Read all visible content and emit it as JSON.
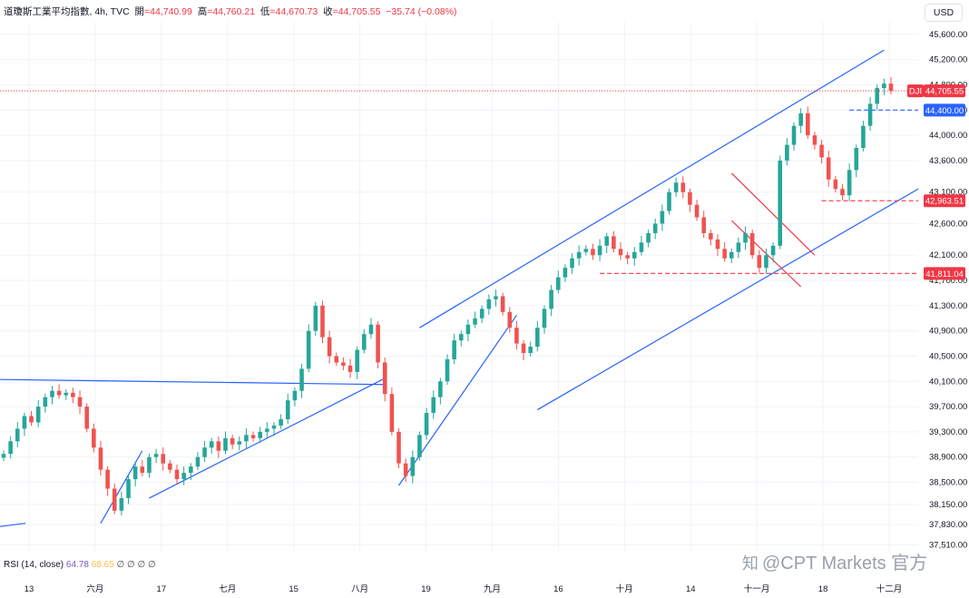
{
  "header": {
    "symbol_title": "道瓊斯工業平均指數, 4h, TVC",
    "open_label": "開",
    "open_value": "=44,740.99",
    "high_label": "高",
    "high_value": "=44,760.21",
    "low_label": "低",
    "low_value": "=44,670.73",
    "close_label": "收",
    "close_value": "=44,705.55",
    "change": "−35.74 (−0.08%)"
  },
  "currency_button": "USD",
  "rsi": {
    "label": "RSI (14, close)",
    "value1": "64.78",
    "value2": "68.65",
    "extra": "∅ ∅ ∅ ∅"
  },
  "watermark": {
    "icon": "知",
    "text": "@CPT Markets 官方"
  },
  "colors": {
    "up": "#26a69a",
    "down": "#ef5350",
    "trendline": "#2962ff",
    "channel_red": "#f23645",
    "price_tag_red": "#f23645",
    "price_tag_blue": "#2962ff",
    "grid": "#f0f3fa"
  },
  "chart_data": {
    "type": "candlestick",
    "y_axis_ticks": [
      "45,600.00",
      "45,200.00",
      "44,800.00",
      "44,400.00",
      "44,000.00",
      "43,600.00",
      "43,100.00",
      "42,600.00",
      "42,100.00",
      "41,700.00",
      "41,300.00",
      "40,900.00",
      "40,500.00",
      "40,100.00",
      "39,700.00",
      "39,300.00",
      "38,900.00",
      "38,500.00",
      "38,150.00",
      "37,830.00",
      "37,510.00"
    ],
    "x_axis_ticks": [
      "13",
      "六月",
      "17",
      "七月",
      "15",
      "八月",
      "19",
      "九月",
      "16",
      "十月",
      "14",
      "十一月",
      "18",
      "十二月"
    ],
    "ylim": [
      37400,
      45800
    ],
    "price_tags": [
      {
        "label": "DJI",
        "value": "44,705.55",
        "kind": "current"
      },
      {
        "label": "",
        "value": "44,400.00",
        "kind": "level-blue"
      },
      {
        "label": "",
        "value": "42,963.51",
        "kind": "level-red"
      },
      {
        "label": "",
        "value": "41,811.04",
        "kind": "level-red"
      }
    ],
    "series": [
      {
        "close": [
          38950,
          39150,
          39350,
          39550,
          39450,
          39700,
          39850,
          39950,
          39880,
          39920,
          39850,
          39700,
          39350,
          39050,
          38700,
          38400,
          38050,
          38250,
          38550,
          38750,
          38650,
          38900,
          38950,
          38800,
          38700,
          38550,
          38650,
          38750,
          38900,
          39050,
          39150,
          39000,
          39200,
          39100,
          39150,
          39250,
          39200,
          39300,
          39350,
          39400,
          39500,
          39800,
          39950,
          40300,
          40900,
          41300,
          40800,
          40500,
          40400,
          40350,
          40250,
          40600,
          40850,
          41000,
          40400,
          39900,
          39300,
          38800,
          38600,
          38900,
          39250,
          39600,
          39850,
          40100,
          40450,
          40750,
          40850,
          41000,
          41100,
          41250,
          41400,
          41450,
          41200,
          40950,
          40700,
          40550,
          40650,
          40950,
          41250,
          41550,
          41750,
          41900,
          42050,
          42150,
          42200,
          42100,
          42250,
          42400,
          42200,
          42100,
          42050,
          42150,
          42300,
          42450,
          42600,
          42800,
          43100,
          43250,
          43100,
          42900,
          42700,
          42450,
          42350,
          42200,
          42050,
          42150,
          42300,
          42450,
          42100,
          41900,
          42100,
          42250,
          43600,
          43850,
          44150,
          44350,
          44000,
          43850,
          43650,
          43300,
          43150,
          43050,
          43450,
          43800,
          44150,
          44500,
          44750,
          44820,
          44705
        ]
      }
    ],
    "trendlines": [
      {
        "name": "upper-channel",
        "from": [
          "九月-2w",
          40900
        ],
        "to": [
          "十二月",
          45350
        ]
      },
      {
        "name": "lower-channel",
        "from": [
          "九月",
          39800
        ],
        "to": [
          "十二月+",
          43150
        ]
      }
    ]
  }
}
